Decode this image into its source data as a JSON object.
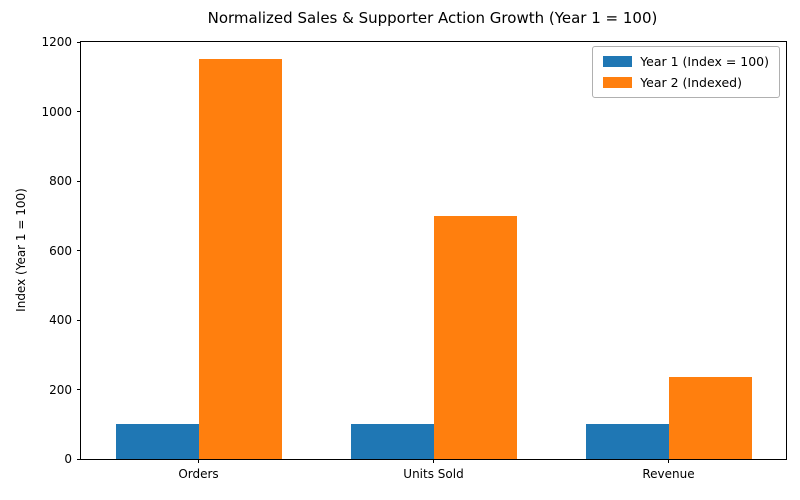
{
  "chart_data": {
    "type": "bar",
    "title": "Normalized Sales & Supporter Action Growth (Year 1 = 100)",
    "xlabel": "",
    "ylabel": "Index (Year 1 = 100)",
    "categories": [
      "Orders",
      "Units Sold",
      "Revenue"
    ],
    "series": [
      {
        "name": "Year 1 (Index = 100)",
        "color": "#1f77b4",
        "values": [
          100,
          100,
          100
        ]
      },
      {
        "name": "Year 2 (Indexed)",
        "color": "#ff7f0e",
        "values": [
          1150,
          700,
          235
        ]
      }
    ],
    "ylim": [
      0,
      1200
    ],
    "yticks": [
      0,
      200,
      400,
      600,
      800,
      1000,
      1200
    ],
    "grid": false,
    "legend_position": "upper right",
    "background_color": "#ffffff",
    "spine_color": "#000000"
  }
}
